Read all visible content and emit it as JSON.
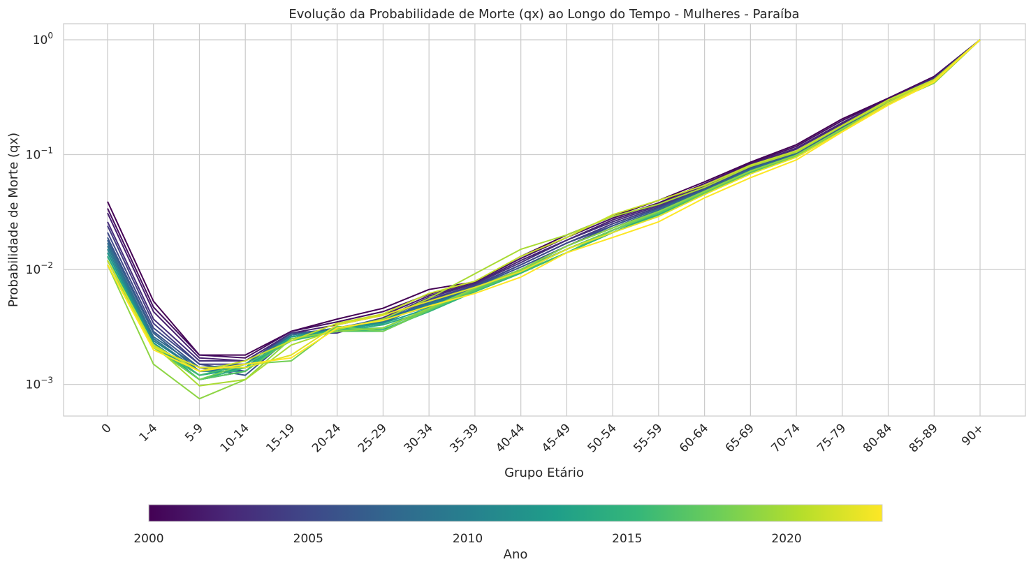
{
  "chart_data": {
    "type": "line",
    "title": "Evolução da Probabilidade de Morte (qx) ao Longo do Tempo - Mulheres - Paraíba",
    "xlabel": "Grupo Etário",
    "ylabel": "Probabilidade de Morte (qx)",
    "y_scale": "log",
    "ylim": [
      0.00053,
      1.38
    ],
    "y_ticks": [
      {
        "value": 0.001,
        "base": "10",
        "exp": "−3"
      },
      {
        "value": 0.01,
        "base": "10",
        "exp": "−2"
      },
      {
        "value": 0.1,
        "base": "10",
        "exp": "−1"
      },
      {
        "value": 1,
        "base": "10",
        "exp": "0"
      }
    ],
    "grid": true,
    "categories": [
      "0",
      "1-4",
      "5-9",
      "10-14",
      "15-19",
      "20-24",
      "25-29",
      "30-34",
      "35-39",
      "40-44",
      "45-49",
      "50-54",
      "55-59",
      "60-64",
      "65-69",
      "70-74",
      "75-79",
      "80-84",
      "85-89",
      "90+"
    ],
    "colorbar": {
      "label": "Ano",
      "min": 2000,
      "max": 2023,
      "ticks": [
        "2000",
        "2005",
        "2010",
        "2015",
        "2020"
      ],
      "colormap": "viridis",
      "colors": [
        "#440154",
        "#482878",
        "#3e4989",
        "#31688e",
        "#26828e",
        "#1f9e89",
        "#35b779",
        "#6ece58",
        "#b5de2b",
        "#fde725"
      ]
    },
    "series": [
      {
        "name": "2000",
        "values": [
          0.039,
          0.0053,
          0.0018,
          0.0018,
          0.0029,
          0.0037,
          0.0046,
          0.0067,
          0.0078,
          0.013,
          0.02,
          0.029,
          0.04,
          0.058,
          0.086,
          0.122,
          0.205,
          0.31,
          0.48,
          1.0
        ]
      },
      {
        "name": "2001",
        "values": [
          0.034,
          0.0047,
          0.0018,
          0.0017,
          0.0029,
          0.0035,
          0.0043,
          0.0061,
          0.0078,
          0.0125,
          0.019,
          0.028,
          0.038,
          0.056,
          0.084,
          0.118,
          0.198,
          0.305,
          0.47,
          1.0
        ]
      },
      {
        "name": "2002",
        "values": [
          0.031,
          0.0043,
          0.0017,
          0.0016,
          0.0028,
          0.0033,
          0.004,
          0.0059,
          0.0076,
          0.012,
          0.018,
          0.027,
          0.037,
          0.054,
          0.082,
          0.114,
          0.19,
          0.3,
          0.47,
          1.0
        ]
      },
      {
        "name": "2003",
        "values": [
          0.026,
          0.0037,
          0.0016,
          0.0016,
          0.0028,
          0.003,
          0.0038,
          0.0057,
          0.0075,
          0.0115,
          0.018,
          0.026,
          0.036,
          0.053,
          0.08,
          0.112,
          0.185,
          0.3,
          0.46,
          1.0
        ]
      },
      {
        "name": "2004",
        "values": [
          0.024,
          0.0034,
          0.0015,
          0.0015,
          0.0028,
          0.0028,
          0.0037,
          0.0055,
          0.0073,
          0.011,
          0.017,
          0.025,
          0.035,
          0.052,
          0.078,
          0.108,
          0.18,
          0.295,
          0.46,
          1.0
        ]
      },
      {
        "name": "2005",
        "values": [
          0.021,
          0.0031,
          0.0015,
          0.0013,
          0.0027,
          0.0031,
          0.0035,
          0.0054,
          0.0072,
          0.011,
          0.017,
          0.024,
          0.034,
          0.051,
          0.077,
          0.106,
          0.178,
          0.29,
          0.45,
          1.0
        ]
      },
      {
        "name": "2006",
        "values": [
          0.019,
          0.0029,
          0.0014,
          0.0012,
          0.0026,
          0.0029,
          0.0035,
          0.0053,
          0.0071,
          0.0105,
          0.016,
          0.024,
          0.034,
          0.05,
          0.076,
          0.104,
          0.175,
          0.29,
          0.45,
          1.0
        ]
      },
      {
        "name": "2007",
        "values": [
          0.018,
          0.0028,
          0.0013,
          0.0014,
          0.0027,
          0.003,
          0.0034,
          0.0052,
          0.007,
          0.01,
          0.016,
          0.023,
          0.033,
          0.049,
          0.075,
          0.102,
          0.172,
          0.285,
          0.45,
          1.0
        ]
      },
      {
        "name": "2008",
        "values": [
          0.017,
          0.0026,
          0.0014,
          0.0015,
          0.0027,
          0.0031,
          0.0037,
          0.0051,
          0.0068,
          0.01,
          0.016,
          0.023,
          0.033,
          0.049,
          0.074,
          0.101,
          0.17,
          0.285,
          0.44,
          1.0
        ]
      },
      {
        "name": "2009",
        "values": [
          0.016,
          0.0025,
          0.0013,
          0.0014,
          0.0026,
          0.0029,
          0.0035,
          0.005,
          0.0068,
          0.01,
          0.015,
          0.022,
          0.032,
          0.048,
          0.073,
          0.1,
          0.168,
          0.28,
          0.44,
          1.0
        ]
      },
      {
        "name": "2010",
        "values": [
          0.015,
          0.0024,
          0.0013,
          0.0013,
          0.0026,
          0.003,
          0.0036,
          0.0049,
          0.0067,
          0.0098,
          0.015,
          0.022,
          0.032,
          0.048,
          0.072,
          0.099,
          0.167,
          0.28,
          0.44,
          1.0
        ]
      },
      {
        "name": "2011",
        "values": [
          0.014,
          0.0023,
          0.0012,
          0.0014,
          0.0025,
          0.0029,
          0.0036,
          0.0048,
          0.0066,
          0.0096,
          0.015,
          0.022,
          0.031,
          0.047,
          0.071,
          0.098,
          0.165,
          0.28,
          0.44,
          1.0
        ]
      },
      {
        "name": "2012",
        "values": [
          0.014,
          0.0023,
          0.0011,
          0.0013,
          0.0026,
          0.003,
          0.0037,
          0.0047,
          0.0067,
          0.0097,
          0.015,
          0.022,
          0.031,
          0.047,
          0.071,
          0.098,
          0.165,
          0.28,
          0.44,
          1.0
        ]
      },
      {
        "name": "2013",
        "values": [
          0.013,
          0.0022,
          0.0012,
          0.0014,
          0.0026,
          0.003,
          0.0034,
          0.0046,
          0.0066,
          0.0095,
          0.014,
          0.021,
          0.031,
          0.046,
          0.07,
          0.097,
          0.165,
          0.28,
          0.44,
          1.0
        ]
      },
      {
        "name": "2014",
        "values": [
          0.013,
          0.0022,
          0.0011,
          0.0013,
          0.0025,
          0.0029,
          0.0033,
          0.0044,
          0.0065,
          0.0094,
          0.014,
          0.021,
          0.03,
          0.046,
          0.07,
          0.097,
          0.164,
          0.275,
          0.43,
          1.0
        ]
      },
      {
        "name": "2015",
        "values": [
          0.012,
          0.0022,
          0.0011,
          0.0014,
          0.0024,
          0.0029,
          0.003,
          0.0043,
          0.0064,
          0.0093,
          0.014,
          0.021,
          0.03,
          0.045,
          0.07,
          0.096,
          0.164,
          0.275,
          0.43,
          1.0
        ]
      },
      {
        "name": "2016",
        "values": [
          0.012,
          0.0021,
          0.0012,
          0.0015,
          0.0024,
          0.003,
          0.0031,
          0.0045,
          0.0065,
          0.0095,
          0.014,
          0.022,
          0.031,
          0.046,
          0.071,
          0.097,
          0.165,
          0.28,
          0.43,
          1.0
        ]
      },
      {
        "name": "2017",
        "values": [
          0.012,
          0.0021,
          0.0011,
          0.0013,
          0.0025,
          0.0029,
          0.0029,
          0.0044,
          0.0066,
          0.0096,
          0.015,
          0.022,
          0.031,
          0.046,
          0.071,
          0.097,
          0.166,
          0.28,
          0.43,
          1.0
        ]
      },
      {
        "name": "2018",
        "values": [
          0.011,
          0.0021,
          0.0011,
          0.0015,
          0.0016,
          0.0032,
          0.0029,
          0.0045,
          0.0068,
          0.0099,
          0.015,
          0.022,
          0.032,
          0.047,
          0.072,
          0.098,
          0.167,
          0.28,
          0.42,
          1.0
        ]
      },
      {
        "name": "2019",
        "values": [
          0.011,
          0.0015,
          0.00075,
          0.0011,
          0.0025,
          0.0029,
          0.0031,
          0.0046,
          0.0069,
          0.01,
          0.016,
          0.023,
          0.032,
          0.048,
          0.072,
          0.099,
          0.168,
          0.28,
          0.42,
          1.0
        ]
      },
      {
        "name": "2020",
        "values": [
          0.012,
          0.0022,
          0.00097,
          0.0011,
          0.0022,
          0.003,
          0.0037,
          0.0056,
          0.0092,
          0.015,
          0.02,
          0.029,
          0.037,
          0.052,
          0.079,
          0.105,
          0.178,
          0.29,
          0.45,
          1.0
        ]
      },
      {
        "name": "2021",
        "values": [
          0.012,
          0.0022,
          0.0013,
          0.0016,
          0.0024,
          0.0034,
          0.0041,
          0.0062,
          0.0079,
          0.013,
          0.019,
          0.03,
          0.04,
          0.054,
          0.081,
          0.108,
          0.18,
          0.3,
          0.45,
          1.0
        ]
      },
      {
        "name": "2022",
        "values": [
          0.011,
          0.0021,
          0.0014,
          0.0014,
          0.0018,
          0.0033,
          0.004,
          0.0053,
          0.007,
          0.0096,
          0.015,
          0.021,
          0.029,
          0.045,
          0.068,
          0.095,
          0.16,
          0.28,
          0.44,
          1.0
        ]
      },
      {
        "name": "2023",
        "values": [
          0.011,
          0.002,
          0.0013,
          0.0015,
          0.0017,
          0.0031,
          0.0036,
          0.0048,
          0.0062,
          0.0086,
          0.014,
          0.019,
          0.026,
          0.042,
          0.063,
          0.09,
          0.158,
          0.27,
          0.43,
          1.0
        ]
      }
    ]
  }
}
